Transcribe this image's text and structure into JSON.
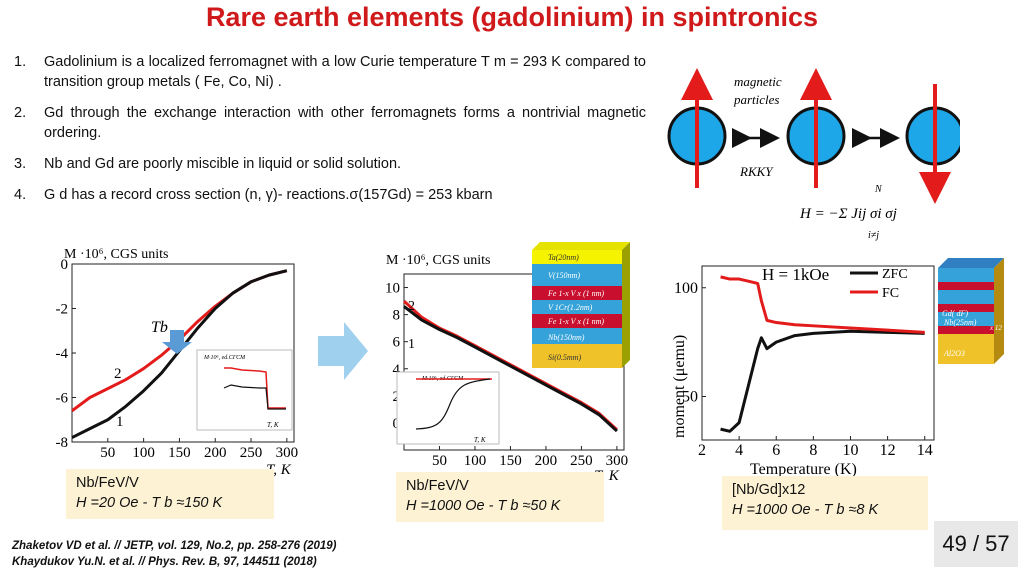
{
  "title": "Rare earth elements (gadolinium) in spintronics",
  "points": [
    {
      "num": "1.",
      "text": "Gadolinium is a localized ferromagnet with a low Curie temperature T m = 293 K compared to transition group metals ( Fe, Co, Ni) ."
    },
    {
      "num": "2.",
      "text": "Gd through the exchange interaction with other ferromagnets forms a nontrivial magnetic ordering."
    },
    {
      "num": "3.",
      "text": "Nb and Gd are poorly miscible in liquid or solid solution."
    },
    {
      "num": "4.",
      "text": "G d has a record cross section (n, γ)- reactions.σ(157Gd) = 253 kbarn"
    }
  ],
  "rkky": {
    "magnetic_label": "magnetic",
    "particles_label": "particles",
    "rkky_label": "RKKY",
    "hamiltonian": "H = −Σ Jij σi σj",
    "sum_upper": "N",
    "sum_lower": "i≠j"
  },
  "chart1": {
    "y_label": "M ·10⁶, CGS units",
    "x_label": "T, K",
    "tb_label": "Tb",
    "curve_labels": [
      "2",
      "1"
    ],
    "inset_label": "M·10⁶, ed.CГСМ",
    "inset_x_label": "T, K",
    "note_line1": "Nb/FeV/V",
    "note_line2": "H =20 Oe - T b ≈150 K"
  },
  "chart2": {
    "y_label": "M ·10⁶, CGS units",
    "x_label": "T, K",
    "curve_labels": [
      "2",
      "1"
    ],
    "inset_label": "M·10⁶, ed.CГСМ",
    "inset_x_label": "T, K",
    "layers": [
      "Ta(20nm)",
      "V(150nm)",
      "Fe 1-x V x (1 nm)",
      "V 1Cr(1.2nm)",
      "Fe 1-x V x (1 nm)",
      "Nb(150nm)",
      "Si(0.5mm)"
    ],
    "note_line1": "Nb/FeV/V",
    "note_line2": "H =1000 Oe - T b ≈50 K"
  },
  "chart3": {
    "field_label": "H = 1kOe",
    "y_label": "moment (μemu)",
    "x_label": "Temperature (K)",
    "legend": [
      "ZFC",
      "FC"
    ],
    "layers": [
      "Gd( dF)",
      "Nb(25nm)",
      "x 12",
      "Al2O3"
    ],
    "note_line1": "[Nb/Gd]x12",
    "note_line2": "H =1000 Oe - T b ≈8 K"
  },
  "chart_data": [
    {
      "type": "line",
      "x": [
        0,
        25,
        50,
        75,
        100,
        125,
        150,
        175,
        200,
        225,
        250,
        275,
        300
      ],
      "xlim": [
        0,
        310
      ],
      "ylim": [
        -8,
        0
      ],
      "x_ticks": [
        "50",
        "100",
        "150",
        "200",
        "250",
        "300"
      ],
      "y_ticks": [
        "0",
        "-2",
        "-4",
        "-6",
        "-8"
      ],
      "series": [
        {
          "name": "2",
          "values": [
            -6.6,
            -6.0,
            -5.6,
            -5.2,
            -4.7,
            -4.1,
            -3.4,
            -2.6,
            -1.9,
            -1.3,
            -0.8,
            -0.5,
            -0.3
          ],
          "color": "#e31b1b"
        },
        {
          "name": "1",
          "values": [
            -7.8,
            -7.4,
            -7.0,
            -6.4,
            -5.7,
            -4.9,
            -3.9,
            -2.9,
            -2.0,
            -1.3,
            -0.8,
            -0.5,
            -0.3
          ],
          "color": "#111111"
        }
      ]
    },
    {
      "type": "line",
      "x": [
        0,
        25,
        50,
        75,
        100,
        125,
        150,
        175,
        200,
        225,
        250,
        275,
        300
      ],
      "xlim": [
        0,
        310
      ],
      "ylim": [
        -2,
        11
      ],
      "x_ticks": [
        "50",
        "100",
        "150",
        "200",
        "250",
        "300"
      ],
      "y_ticks": [
        "10",
        "8",
        "6",
        "4",
        "2",
        "0"
      ],
      "series": [
        {
          "name": "2",
          "values": [
            9.0,
            7.8,
            7.0,
            6.4,
            5.7,
            5.0,
            4.3,
            3.6,
            2.9,
            2.2,
            1.5,
            0.7,
            -0.5
          ],
          "color": "#e31b1b"
        },
        {
          "name": "1",
          "values": [
            8.6,
            7.6,
            6.9,
            6.3,
            5.6,
            4.9,
            4.2,
            3.5,
            2.8,
            2.1,
            1.4,
            0.6,
            -0.6
          ],
          "color": "#111111"
        }
      ]
    },
    {
      "type": "line",
      "x": [
        3,
        3.5,
        4,
        4.5,
        5,
        5.2,
        5.5,
        6,
        7,
        8,
        10,
        12,
        14
      ],
      "xlim": [
        2,
        14.5
      ],
      "ylim": [
        30,
        110
      ],
      "x_ticks": [
        "2",
        "4",
        "6",
        "8",
        "10",
        "12",
        "14"
      ],
      "y_ticks": [
        "100",
        "50"
      ],
      "series": [
        {
          "name": "ZFC",
          "values": [
            35,
            34,
            38,
            55,
            72,
            77,
            72,
            75,
            78,
            79,
            80,
            79.5,
            79
          ],
          "color": "#111111"
        },
        {
          "name": "FC",
          "values": [
            105,
            104,
            104,
            103,
            102,
            94,
            85,
            84,
            83,
            82.5,
            81.5,
            80.5,
            79.5
          ],
          "color": "#e31b1b"
        }
      ]
    }
  ],
  "footer": {
    "cite1": "Zhaketov VD et al. // JETP, vol. 129, No.2, pp. 258-276 (2019)",
    "cite2": "Khaydukov Yu.N. et al. // Phys. Rev. B, 97, 144511 (2018)",
    "page": "49 / 57"
  },
  "colors": {
    "title": "#d0191b",
    "particle": "#1ea7e8",
    "arrow": "#e31b1b",
    "note_bg": "#fdf2d4"
  }
}
